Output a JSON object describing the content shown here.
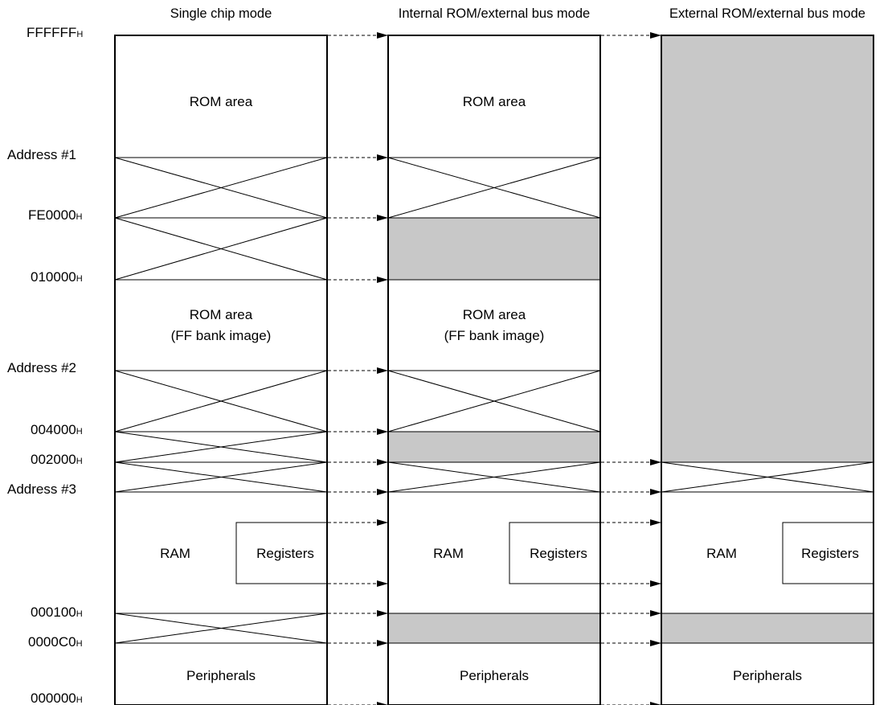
{
  "headers": {
    "single": "Single chip mode",
    "internal": "Internal ROM/external bus mode",
    "external": "External ROM/external bus mode"
  },
  "addresses": {
    "ffffff": {
      "main": "FFFFFF",
      "sub": "H"
    },
    "addr1": {
      "main": "Address #1",
      "sub": ""
    },
    "fe0000": {
      "main": "FE0000",
      "sub": "H"
    },
    "a010000": {
      "main": "010000",
      "sub": "H"
    },
    "addr2": {
      "main": "Address #2",
      "sub": ""
    },
    "a004000": {
      "main": "004000",
      "sub": "H"
    },
    "a002000": {
      "main": "002000",
      "sub": "H"
    },
    "addr3": {
      "main": "Address #3",
      "sub": ""
    },
    "a000100": {
      "main": "000100",
      "sub": "H"
    },
    "a0000c0": {
      "main": "0000C0",
      "sub": "H"
    },
    "a000000": {
      "main": "000000",
      "sub": "H"
    }
  },
  "labels": {
    "rom_area": "ROM area",
    "ff_bank_image": "(FF bank image)",
    "ram": "RAM",
    "registers": "Registers",
    "peripherals": "Peripherals"
  },
  "colors": {
    "line": "#000000",
    "shade": "#c8c8c8",
    "background": "#ffffff"
  }
}
